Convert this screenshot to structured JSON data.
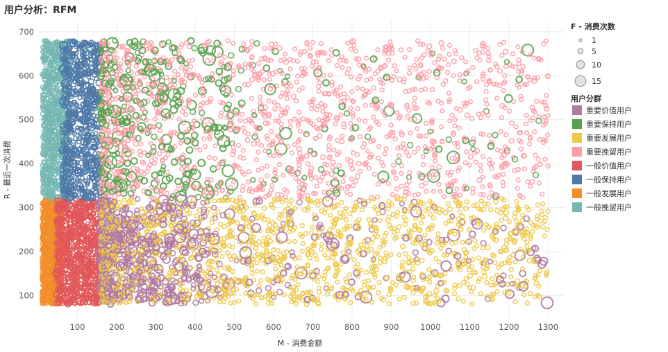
{
  "title": "用户分析：RFM",
  "chart_data": {
    "type": "scatter",
    "title": "用户分析：RFM",
    "xlabel": "M - 消费金额",
    "ylabel": "R - 最近一次消费",
    "xlim": [
      0,
      1340
    ],
    "ylim": [
      50,
      725
    ],
    "x_ticks": [
      "100",
      "200",
      "300",
      "400",
      "500",
      "600",
      "700",
      "800",
      "900",
      "1000",
      "1100",
      "1200",
      "1300"
    ],
    "y_ticks": [
      "100",
      "200",
      "300",
      "400",
      "500",
      "600",
      "700"
    ],
    "grid": true,
    "r_threshold": 320,
    "m_threshold": 160,
    "size_legend": {
      "title": "F - 消费次数",
      "items": [
        {
          "label": "1",
          "value": 1
        },
        {
          "label": "5",
          "value": 5
        },
        {
          "label": "10",
          "value": 10
        },
        {
          "label": "15",
          "value": 15
        }
      ]
    },
    "color_legend": {
      "title": "用户分群",
      "position": "right"
    },
    "series": [
      {
        "name": "重要价值用户",
        "color": "#b07aa1",
        "m_range": [
          160,
          1300
        ],
        "r_range": [
          80,
          320
        ]
      },
      {
        "name": "重要保持用户",
        "color": "#59a14f",
        "m_range": [
          160,
          1300
        ],
        "r_range": [
          320,
          680
        ]
      },
      {
        "name": "重要发展用户",
        "color": "#edc948",
        "m_range": [
          160,
          1300
        ],
        "r_range": [
          80,
          320
        ]
      },
      {
        "name": "重要挽留用户",
        "color": "#ff9da7",
        "m_range": [
          160,
          1300
        ],
        "r_range": [
          320,
          680
        ]
      },
      {
        "name": "一般价值用户",
        "color": "#e15759",
        "m_range": [
          10,
          160
        ],
        "r_range": [
          80,
          320
        ]
      },
      {
        "name": "一般保持用户",
        "color": "#4e79a7",
        "m_range": [
          10,
          160
        ],
        "r_range": [
          320,
          680
        ]
      },
      {
        "name": "一般发展用户",
        "color": "#f28e2b",
        "m_range": [
          10,
          160
        ],
        "r_range": [
          80,
          320
        ]
      },
      {
        "name": "一般挽留用户",
        "color": "#76b7b2",
        "m_range": [
          10,
          160
        ],
        "r_range": [
          320,
          680
        ]
      }
    ]
  }
}
